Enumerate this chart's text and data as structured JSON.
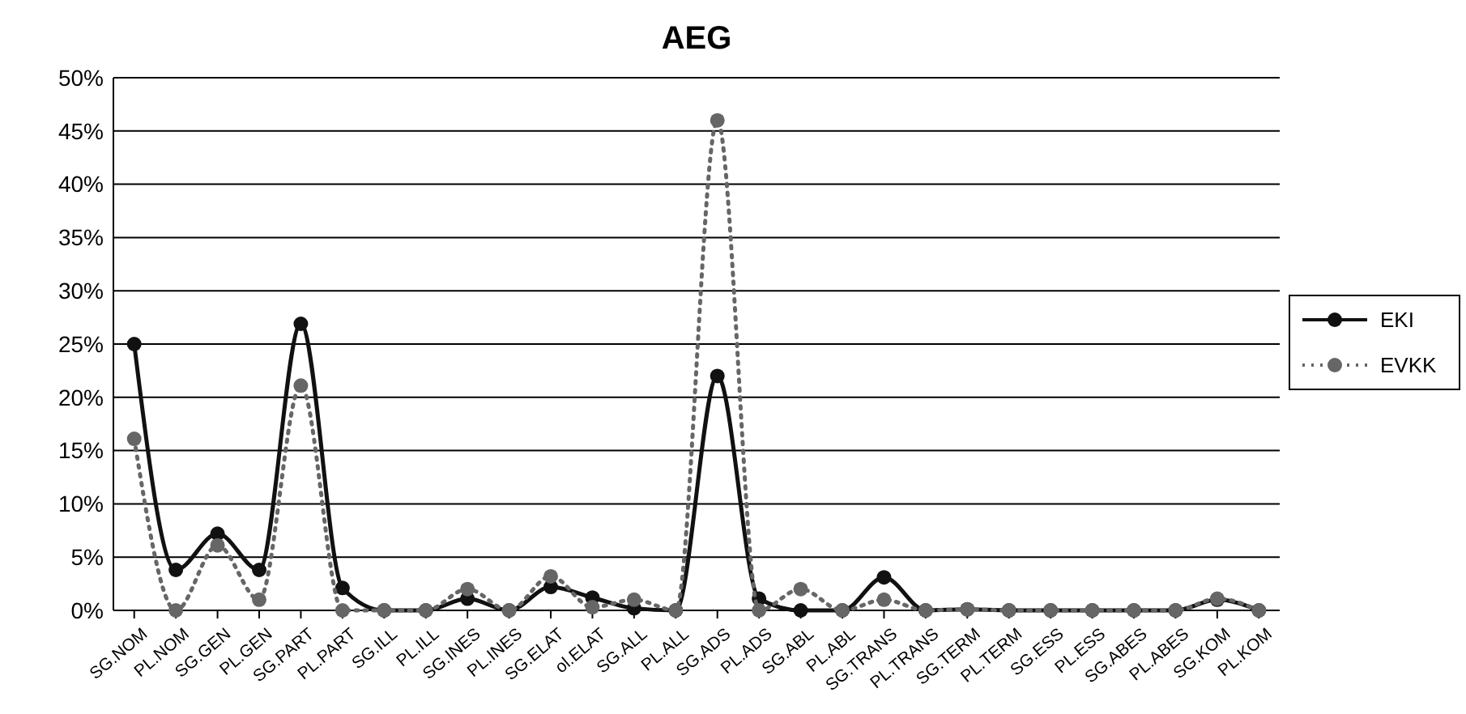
{
  "chart_data": {
    "type": "line",
    "title": "AEG",
    "categories": [
      "SG.NOM",
      "PL.NOM",
      "SG.GEN",
      "PL.GEN",
      "SG.PART",
      "PL.PART",
      "SG.ILL",
      "PL.ILL",
      "SG.INES",
      "PL.INES",
      "SG.ELAT",
      "ol.ELAT",
      "SG.ALL",
      "PL.ALL",
      "SG.ADS",
      "PL.ADS",
      "SG.ABL",
      "PL.ABL",
      "SG.TRANS",
      "PL.TRANS",
      "SG.TERM",
      "PL.TERM",
      "SG.ESS",
      "PL.ESS",
      "SG.ABES",
      "PL.ABES",
      "SG.KOM",
      "PL.KOM"
    ],
    "series": [
      {
        "name": "EKI",
        "color": "#111111",
        "line_style": "solid",
        "values": [
          25,
          3.8,
          7.2,
          3.8,
          26.9,
          2.1,
          0,
          0,
          1.1,
          0,
          2.2,
          1.2,
          0.2,
          0,
          22,
          1.1,
          0,
          0,
          3.1,
          0,
          0.1,
          0,
          0,
          0,
          0,
          0,
          1,
          0
        ]
      },
      {
        "name": "EVKK",
        "color": "#666666",
        "line_style": "dotted",
        "values": [
          16.1,
          0,
          6.1,
          1,
          21.1,
          0,
          0,
          0,
          2,
          0,
          3.2,
          0.3,
          1,
          0,
          46,
          0,
          2,
          0,
          1,
          0,
          0.1,
          0,
          0,
          0,
          0,
          0,
          1.1,
          0
        ]
      }
    ],
    "ylim": [
      0,
      50
    ],
    "yticks": [
      {
        "value": 0,
        "label": "0%"
      },
      {
        "value": 5,
        "label": "5%"
      },
      {
        "value": 10,
        "label": "10%"
      },
      {
        "value": 15,
        "label": "15%"
      },
      {
        "value": 20,
        "label": "20%"
      },
      {
        "value": 25,
        "label": "25%"
      },
      {
        "value": 30,
        "label": "30%"
      },
      {
        "value": 35,
        "label": "35%"
      },
      {
        "value": 40,
        "label": "40%"
      },
      {
        "value": 45,
        "label": "45%"
      },
      {
        "value": 50,
        "label": "50%"
      }
    ],
    "grid": "y",
    "legend": "right",
    "marker": "circle"
  }
}
